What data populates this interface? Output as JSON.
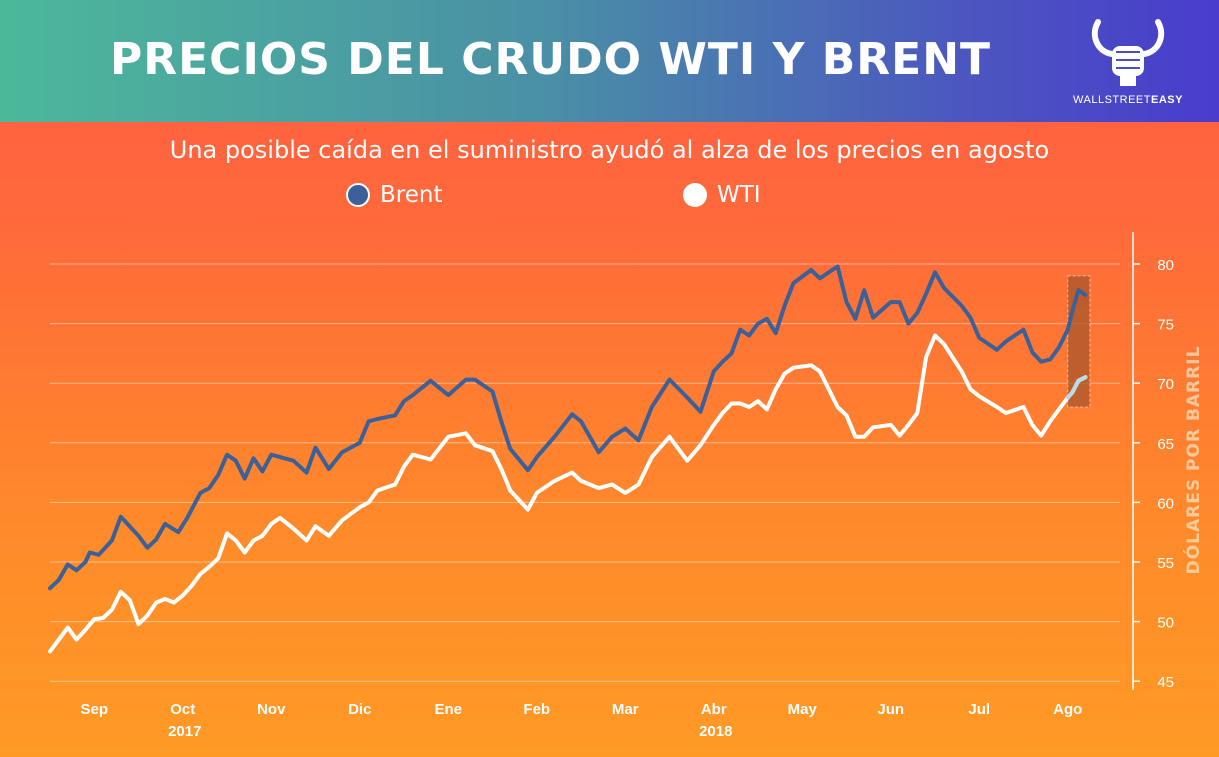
{
  "header": {
    "title": "PRECIOS DEL CRUDO WTI Y BRENT",
    "logo_text_light": "WALLSTREET",
    "logo_text_bold": "EASY",
    "logo_icon": "bull-fist-icon"
  },
  "subtitle": "Una posible caída en el suministro ayudó al alza de los precios en agosto",
  "colors": {
    "brent": "#3c6199",
    "wti": "#ffffff",
    "highlight": "#a8562c",
    "wti_highlight": "#b9dce8"
  },
  "chart_data": {
    "type": "line",
    "title": "PRECIOS DEL CRUDO WTI Y BRENT",
    "subtitle": "Una posible caída en el suministro ayudó al alza de los precios en agosto",
    "ylabel": "DÓLARES POR BARRIL",
    "xlabel": "",
    "ylim": [
      45,
      82
    ],
    "yticks": [
      45,
      50,
      55,
      60,
      65,
      70,
      75,
      80
    ],
    "grid": true,
    "legend": "top-center",
    "months": [
      "Sep",
      "Oct",
      "Nov",
      "Dic",
      "Ene",
      "Feb",
      "Mar",
      "Abr",
      "May",
      "Jun",
      "Jul",
      "Ago"
    ],
    "years": [
      {
        "label": "2017",
        "month_index": 1.5
      },
      {
        "label": "2018",
        "month_index": 7.5
      }
    ],
    "x_unit": "months since start of Sep 2017",
    "highlight_range": {
      "x": [
        11.5,
        11.75
      ],
      "y": [
        68,
        79
      ]
    },
    "series": [
      {
        "name": "Brent",
        "x": [
          0.0,
          0.1,
          0.2,
          0.3,
          0.4,
          0.45,
          0.55,
          0.7,
          0.8,
          1.0,
          1.1,
          1.2,
          1.3,
          1.45,
          1.55,
          1.7,
          1.8,
          1.9,
          2.0,
          2.1,
          2.2,
          2.3,
          2.4,
          2.5,
          2.6,
          2.75,
          2.9,
          3.0,
          3.15,
          3.3,
          3.5,
          3.6,
          3.7,
          3.9,
          4.0,
          4.1,
          4.3,
          4.5,
          4.7,
          4.8,
          5.0,
          5.1,
          5.2,
          5.4,
          5.5,
          5.7,
          5.9,
          6.0,
          6.2,
          6.35,
          6.5,
          6.65,
          6.8,
          7.0,
          7.2,
          7.35,
          7.5,
          7.6,
          7.7,
          7.8,
          7.9,
          8.0,
          8.1,
          8.2,
          8.3,
          8.4,
          8.6,
          8.7,
          8.9,
          9.0,
          9.1,
          9.2,
          9.3,
          9.5,
          9.6,
          9.7,
          9.8,
          9.9,
          10.0,
          10.1,
          10.3,
          10.4,
          10.5,
          10.7,
          10.8,
          11.0,
          11.1,
          11.2,
          11.3,
          11.4,
          11.5,
          11.55,
          11.62,
          11.7
        ],
        "values": [
          52.8,
          53.5,
          54.8,
          54.3,
          55.0,
          55.8,
          55.6,
          56.8,
          58.8,
          57.2,
          56.2,
          56.9,
          58.2,
          57.5,
          58.7,
          60.8,
          61.2,
          62.3,
          64.0,
          63.5,
          62.0,
          63.7,
          62.6,
          64.0,
          63.8,
          63.5,
          62.5,
          64.6,
          62.8,
          64.2,
          65.0,
          66.8,
          67.0,
          67.3,
          68.5,
          69.0,
          70.2,
          69.0,
          70.3,
          70.3,
          69.3,
          66.8,
          64.5,
          62.7,
          63.8,
          65.5,
          67.4,
          66.8,
          64.2,
          65.5,
          66.2,
          65.2,
          68.0,
          70.3,
          68.8,
          67.6,
          71.0,
          71.8,
          72.5,
          74.5,
          74.0,
          75.0,
          75.4,
          74.2,
          76.5,
          78.4,
          79.5,
          78.8,
          79.8,
          76.8,
          75.4,
          77.8,
          75.5,
          76.8,
          76.8,
          75.0,
          75.9,
          77.5,
          79.3,
          78.0,
          76.5,
          75.5,
          73.8,
          72.8,
          73.5,
          74.5,
          72.6,
          71.8,
          72.0,
          73.0,
          74.5,
          76.0,
          77.8,
          77.4
        ]
      },
      {
        "name": "WTI",
        "x": [
          0.0,
          0.1,
          0.2,
          0.3,
          0.4,
          0.5,
          0.6,
          0.7,
          0.8,
          0.9,
          1.0,
          1.1,
          1.2,
          1.3,
          1.4,
          1.5,
          1.6,
          1.7,
          1.8,
          1.9,
          2.0,
          2.1,
          2.2,
          2.3,
          2.4,
          2.5,
          2.6,
          2.75,
          2.9,
          3.0,
          3.15,
          3.3,
          3.5,
          3.6,
          3.7,
          3.9,
          4.0,
          4.1,
          4.3,
          4.5,
          4.7,
          4.8,
          5.0,
          5.1,
          5.2,
          5.4,
          5.5,
          5.7,
          5.9,
          6.0,
          6.2,
          6.35,
          6.5,
          6.65,
          6.8,
          7.0,
          7.2,
          7.35,
          7.5,
          7.6,
          7.7,
          7.8,
          7.9,
          8.0,
          8.1,
          8.2,
          8.3,
          8.4,
          8.6,
          8.7,
          8.9,
          9.0,
          9.1,
          9.2,
          9.3,
          9.5,
          9.6,
          9.7,
          9.8,
          9.9,
          10.0,
          10.1,
          10.3,
          10.4,
          10.5,
          10.7,
          10.8,
          11.0,
          11.1,
          11.2,
          11.3,
          11.4,
          11.5,
          11.55,
          11.62,
          11.7
        ],
        "values": [
          47.5,
          48.5,
          49.5,
          48.5,
          49.3,
          50.2,
          50.3,
          51.0,
          52.5,
          51.8,
          49.8,
          50.5,
          51.6,
          51.9,
          51.6,
          52.2,
          53.0,
          54.0,
          54.6,
          55.3,
          57.4,
          56.8,
          55.8,
          56.8,
          57.2,
          58.2,
          58.7,
          57.8,
          56.8,
          58.0,
          57.2,
          58.5,
          59.6,
          60.0,
          61.0,
          61.5,
          63.0,
          64.0,
          63.6,
          65.5,
          65.8,
          64.8,
          64.3,
          62.8,
          61.0,
          59.4,
          60.8,
          61.8,
          62.5,
          61.8,
          61.2,
          61.5,
          60.8,
          61.5,
          63.8,
          65.5,
          63.5,
          64.8,
          66.5,
          67.5,
          68.3,
          68.3,
          68.0,
          68.5,
          67.8,
          69.5,
          70.8,
          71.3,
          71.5,
          71.0,
          68.0,
          67.3,
          65.5,
          65.5,
          66.3,
          66.5,
          65.6,
          66.5,
          67.5,
          72.2,
          74.0,
          73.3,
          71.0,
          69.5,
          68.9,
          68.0,
          67.5,
          68.0,
          66.5,
          65.6,
          66.8,
          67.8,
          68.8,
          69.2,
          70.2,
          70.5
        ]
      }
    ]
  }
}
